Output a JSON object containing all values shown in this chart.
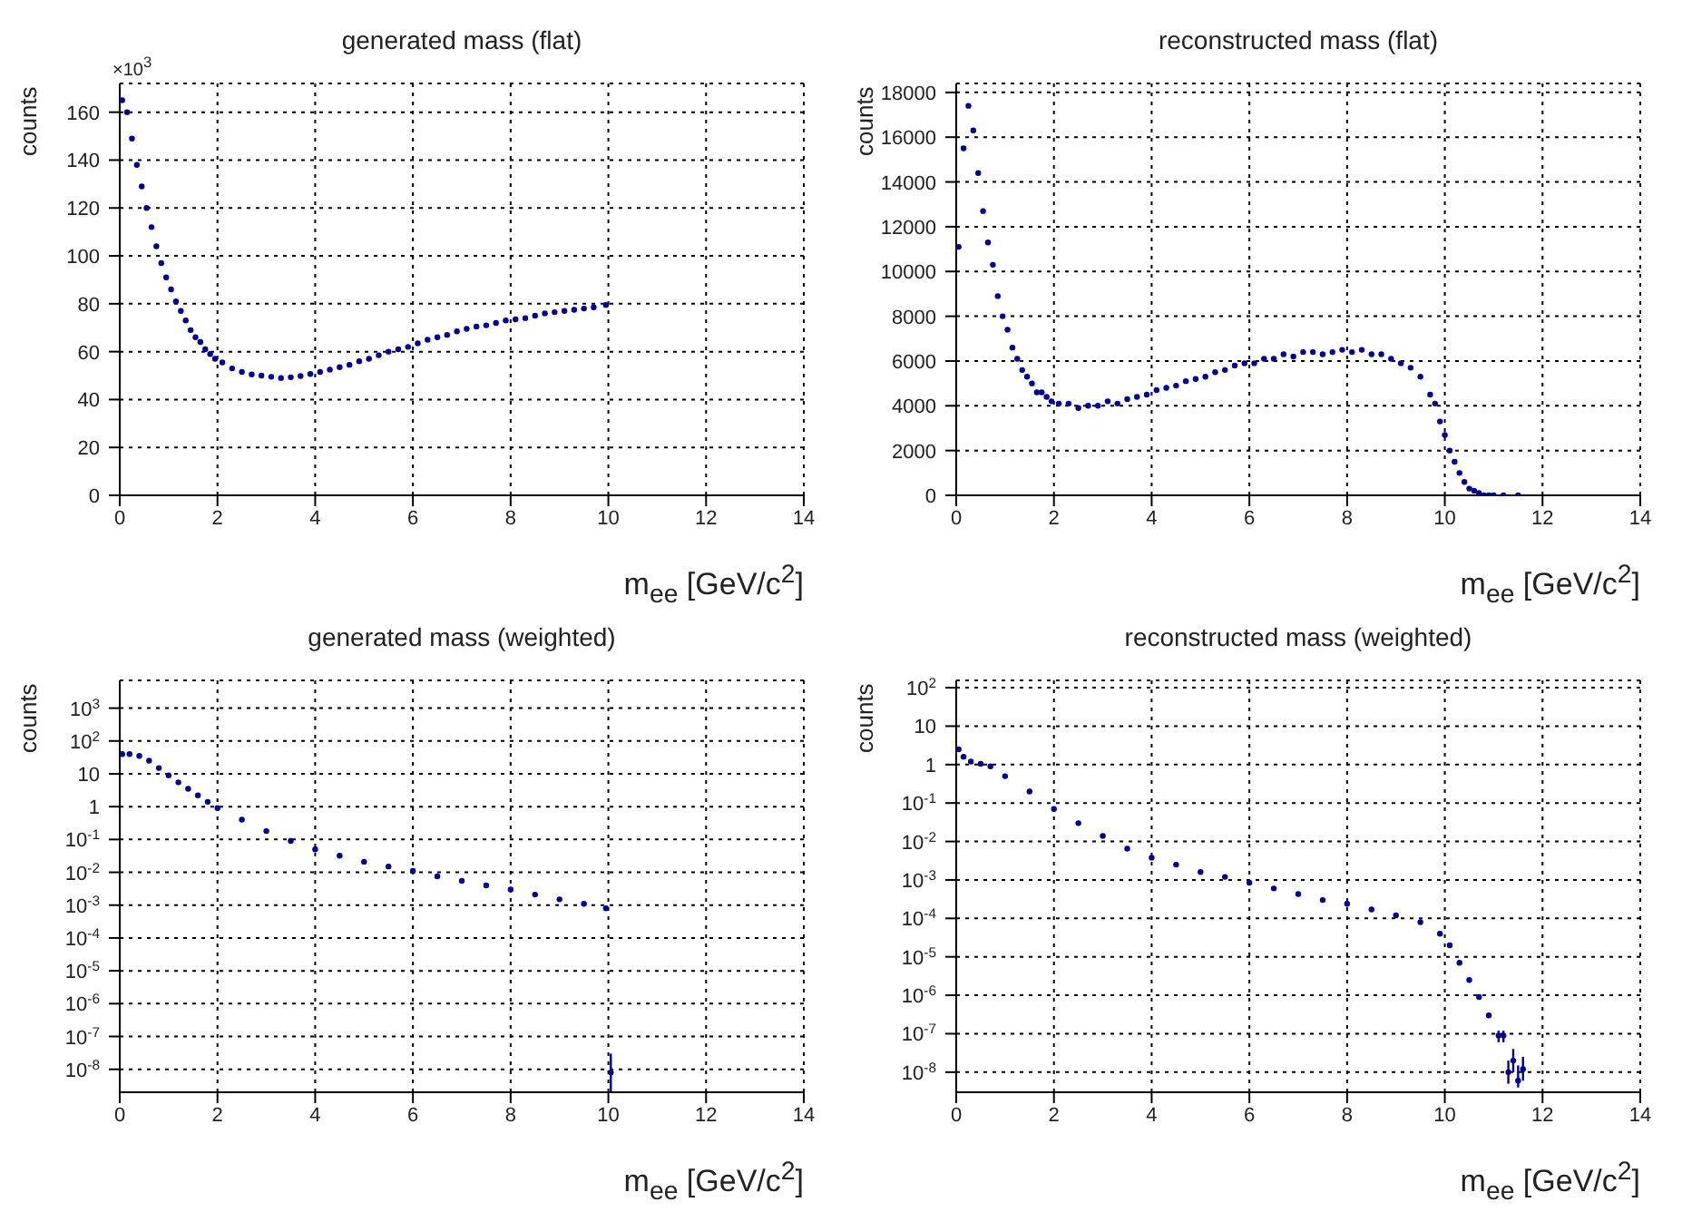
{
  "chart_data": [
    {
      "type": "scatter",
      "title": "generated mass (flat)",
      "xlabel": "m$_{ee}$ [GeV/c$^{2}$]",
      "ylabel": "counts",
      "annotations": [
        "×10$^{3}$"
      ],
      "xlim": [
        0,
        14
      ],
      "xticks": [
        0,
        2,
        4,
        6,
        8,
        10,
        12,
        14
      ],
      "ylim": [
        0,
        172
      ],
      "yticks": [
        0,
        20,
        40,
        60,
        80,
        100,
        120,
        140,
        160
      ],
      "grid": true,
      "marker": "circle",
      "color": "#000099",
      "x": [
        0.05,
        0.15,
        0.25,
        0.35,
        0.45,
        0.55,
        0.65,
        0.75,
        0.85,
        0.95,
        1.05,
        1.15,
        1.25,
        1.35,
        1.45,
        1.55,
        1.65,
        1.75,
        1.85,
        1.95,
        2.1,
        2.3,
        2.5,
        2.7,
        2.9,
        3.1,
        3.3,
        3.5,
        3.7,
        3.9,
        4.1,
        4.3,
        4.5,
        4.7,
        4.9,
        5.1,
        5.3,
        5.5,
        5.7,
        5.9,
        6.1,
        6.3,
        6.5,
        6.7,
        6.9,
        7.1,
        7.3,
        7.5,
        7.7,
        7.9,
        8.1,
        8.3,
        8.5,
        8.7,
        8.9,
        9.1,
        9.3,
        9.5,
        9.7,
        9.95
      ],
      "values": [
        165,
        160,
        149,
        138,
        129,
        120,
        112,
        104,
        97,
        91,
        86,
        81,
        77,
        73,
        69,
        66,
        64,
        61,
        59,
        57,
        55.5,
        53,
        51.5,
        50.5,
        50,
        49.5,
        49,
        49.3,
        49.8,
        50.7,
        51.5,
        52.5,
        53.5,
        54.5,
        56,
        57,
        58.5,
        60,
        61,
        62,
        63.5,
        65,
        66,
        67,
        68.5,
        69.5,
        70.5,
        71,
        72,
        73,
        73.5,
        74,
        75,
        76,
        76.5,
        77,
        77.5,
        78,
        78.5,
        79.5
      ]
    },
    {
      "type": "scatter",
      "title": "reconstructed mass (flat)",
      "xlabel": "m$_{ee}$ [GeV/c$^{2}$]",
      "ylabel": "counts",
      "xlim": [
        0,
        14
      ],
      "xticks": [
        0,
        2,
        4,
        6,
        8,
        10,
        12,
        14
      ],
      "ylim": [
        0,
        18400
      ],
      "yticks": [
        0,
        2000,
        4000,
        6000,
        8000,
        10000,
        12000,
        14000,
        16000,
        18000
      ],
      "grid": true,
      "marker": "circle",
      "color": "#000099",
      "x": [
        0.05,
        0.15,
        0.25,
        0.35,
        0.45,
        0.55,
        0.65,
        0.75,
        0.85,
        0.95,
        1.05,
        1.15,
        1.25,
        1.35,
        1.45,
        1.55,
        1.65,
        1.75,
        1.85,
        1.95,
        2.1,
        2.3,
        2.5,
        2.7,
        2.9,
        3.1,
        3.3,
        3.5,
        3.7,
        3.9,
        4.1,
        4.3,
        4.5,
        4.7,
        4.9,
        5.1,
        5.3,
        5.5,
        5.7,
        5.9,
        6.1,
        6.3,
        6.5,
        6.7,
        6.9,
        7.1,
        7.3,
        7.5,
        7.7,
        7.9,
        8.1,
        8.3,
        8.5,
        8.7,
        8.9,
        9.1,
        9.3,
        9.5,
        9.7,
        9.8,
        9.9,
        10.0,
        10.1,
        10.2,
        10.3,
        10.4,
        10.5,
        10.6,
        10.7,
        10.8,
        10.9,
        11.0,
        11.2,
        11.5
      ],
      "values": [
        11100,
        15500,
        17400,
        16300,
        14400,
        12700,
        11300,
        10300,
        8900,
        8000,
        7400,
        6600,
        6100,
        5600,
        5300,
        5000,
        4600,
        4600,
        4400,
        4200,
        4100,
        4100,
        3900,
        4000,
        4000,
        4200,
        4100,
        4300,
        4400,
        4500,
        4700,
        4800,
        4900,
        5100,
        5200,
        5300,
        5500,
        5600,
        5800,
        5900,
        5900,
        6100,
        6100,
        6300,
        6200,
        6400,
        6400,
        6300,
        6400,
        6500,
        6400,
        6500,
        6300,
        6300,
        6100,
        5900,
        5700,
        5300,
        4500,
        4100,
        3300,
        2700,
        2000,
        1500,
        1000,
        600,
        300,
        200,
        100,
        0,
        0,
        0,
        0,
        0
      ]
    },
    {
      "type": "scatter",
      "title": "generated mass (weighted)",
      "xlabel": "m$_{ee}$ [GeV/c$^{2}$]",
      "ylabel": "counts",
      "log": "y",
      "xlim": [
        0,
        14
      ],
      "xticks": [
        0,
        2,
        4,
        6,
        8,
        10,
        12,
        14
      ],
      "ylim": [
        2e-09,
        7000
      ],
      "yticks": [
        {
          "value": 1e-08,
          "label": "10$^{-8}$"
        },
        {
          "value": 1e-07,
          "label": "10$^{-7}$"
        },
        {
          "value": 1e-06,
          "label": "10$^{-6}$"
        },
        {
          "value": 1e-05,
          "label": "10$^{-5}$"
        },
        {
          "value": 0.0001,
          "label": "10$^{-4}$"
        },
        {
          "value": 0.001,
          "label": "10$^{-3}$"
        },
        {
          "value": 0.01,
          "label": "10$^{-2}$"
        },
        {
          "value": 0.1,
          "label": "10$^{-1}$"
        },
        1,
        10,
        {
          "value": 100,
          "label": "10$^{2}$"
        },
        {
          "value": 1000,
          "label": "10$^{3}$"
        }
      ],
      "grid": true,
      "marker": "circle",
      "color": "#000099",
      "x": [
        0.05,
        0.2,
        0.4,
        0.6,
        0.8,
        1.0,
        1.2,
        1.4,
        1.6,
        1.8,
        2.0,
        2.5,
        3.0,
        3.5,
        4.0,
        4.5,
        5.0,
        5.5,
        6.0,
        6.5,
        7.0,
        7.5,
        8.0,
        8.5,
        9.0,
        9.5,
        9.95,
        10.05
      ],
      "values": [
        40,
        40,
        35,
        25,
        15,
        9,
        5.5,
        3.5,
        2.2,
        1.4,
        0.9,
        0.4,
        0.18,
        0.09,
        0.05,
        0.032,
        0.021,
        0.015,
        0.011,
        0.0075,
        0.0055,
        0.004,
        0.003,
        0.0021,
        0.0015,
        0.0011,
        0.0008,
        8e-09
      ],
      "errors": [
        null,
        null,
        null,
        null,
        null,
        null,
        null,
        null,
        null,
        null,
        null,
        null,
        null,
        null,
        null,
        null,
        null,
        null,
        null,
        null,
        null,
        null,
        null,
        null,
        null,
        null,
        null,
        [
          2e-09,
          3e-08
        ]
      ]
    },
    {
      "type": "scatter",
      "title": "reconstructed mass (weighted)",
      "xlabel": "m$_{ee}$ [GeV/c$^{2}$]",
      "ylabel": "counts",
      "log": "y",
      "xlim": [
        0,
        14
      ],
      "xticks": [
        0,
        2,
        4,
        6,
        8,
        10,
        12,
        14
      ],
      "ylim": [
        3e-09,
        155
      ],
      "yticks": [
        {
          "value": 1e-08,
          "label": "10$^{-8}$"
        },
        {
          "value": 1e-07,
          "label": "10$^{-7}$"
        },
        {
          "value": 1e-06,
          "label": "10$^{-6}$"
        },
        {
          "value": 1e-05,
          "label": "10$^{-5}$"
        },
        {
          "value": 0.0001,
          "label": "10$^{-4}$"
        },
        {
          "value": 0.001,
          "label": "10$^{-3}$"
        },
        {
          "value": 0.01,
          "label": "10$^{-2}$"
        },
        {
          "value": 0.1,
          "label": "10$^{-1}$"
        },
        1,
        10,
        {
          "value": 100,
          "label": "10$^{2}$"
        }
      ],
      "grid": true,
      "marker": "circle",
      "color": "#000099",
      "x": [
        0.05,
        0.15,
        0.3,
        0.5,
        0.7,
        1.0,
        1.5,
        2.0,
        2.5,
        3.0,
        3.5,
        4.0,
        4.5,
        5.0,
        5.5,
        6.0,
        6.5,
        7.0,
        7.5,
        8.0,
        8.5,
        9.0,
        9.5,
        9.9,
        10.1,
        10.3,
        10.5,
        10.7,
        10.9,
        11.1,
        11.2,
        11.3,
        11.4,
        11.5,
        11.6
      ],
      "values": [
        2.5,
        1.6,
        1.2,
        1.05,
        0.9,
        0.5,
        0.2,
        0.07,
        0.03,
        0.014,
        0.0065,
        0.0038,
        0.0025,
        0.0016,
        0.0012,
        0.00085,
        0.0006,
        0.00043,
        0.0003,
        0.00024,
        0.00017,
        0.00012,
        8e-05,
        4e-05,
        2e-05,
        7e-06,
        2.5e-06,
        9e-07,
        3e-07,
        9e-08,
        9e-08,
        1e-08,
        2e-08,
        6e-09,
        1.2e-08
      ],
      "errors": [
        null,
        null,
        null,
        null,
        null,
        null,
        null,
        null,
        null,
        null,
        null,
        null,
        null,
        null,
        null,
        null,
        null,
        null,
        null,
        null,
        null,
        null,
        null,
        null,
        null,
        null,
        null,
        null,
        null,
        [
          6e-08,
          1.2e-07
        ],
        [
          6e-08,
          1.2e-07
        ],
        [
          5e-09,
          2e-08
        ],
        [
          1e-08,
          4e-08
        ],
        [
          4e-09,
          1.5e-08
        ],
        [
          6e-09,
          2.5e-08
        ]
      ]
    }
  ]
}
